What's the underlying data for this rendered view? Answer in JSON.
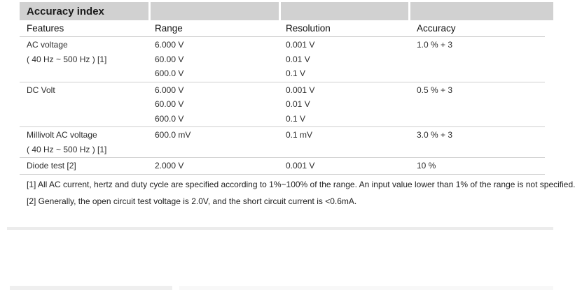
{
  "header": {
    "title": "Accuracy index",
    "columns": [
      "Features",
      "Range",
      "Resolution",
      "Accuracy"
    ]
  },
  "sections": [
    {
      "name": "ac-voltage",
      "feature_lines": [
        "AC voltage",
        "( 40 Hz ~ 500 Hz ) [1]"
      ],
      "ranges": [
        "6.000 V",
        "60.00 V",
        "600.0 V"
      ],
      "resolutions": [
        "0.001 V",
        "0.01 V",
        "0.1 V"
      ],
      "accuracy": "1.0 % + 3"
    },
    {
      "name": "dc-volt",
      "feature_lines": [
        "DC Volt"
      ],
      "ranges": [
        "6.000 V",
        "60.00 V",
        "600.0 V"
      ],
      "resolutions": [
        "0.001 V",
        "0.01 V",
        "0.1 V"
      ],
      "accuracy": "0.5 % + 3"
    },
    {
      "name": "millivolt-ac-voltage",
      "feature_lines": [
        "Millivolt AC voltage",
        "( 40 Hz ~ 500 Hz ) [1]"
      ],
      "ranges": [
        "600.0 mV"
      ],
      "resolutions": [
        "0.1 mV"
      ],
      "accuracy": "3.0 % + 3"
    },
    {
      "name": "diode-test",
      "feature_lines": [
        "Diode test [2]"
      ],
      "ranges": [
        "2.000 V"
      ],
      "resolutions": [
        "0.001 V"
      ],
      "accuracy": "10 %"
    }
  ],
  "footnotes": [
    "[1] All AC current, hertz and duty cycle are specified according to 1%~100% of the range. An input value lower than 1% of the range is not specified.",
    "[2] Generally, the open circuit test voltage is 2.0V, and the short circuit current is <0.6mA."
  ],
  "colors": {
    "header_bar": "#d1d1d1",
    "divider_line": "#cccccc",
    "divider_band": "#ececec",
    "title_text": "#1b1b1b",
    "body_text": "#2e2e2e"
  }
}
